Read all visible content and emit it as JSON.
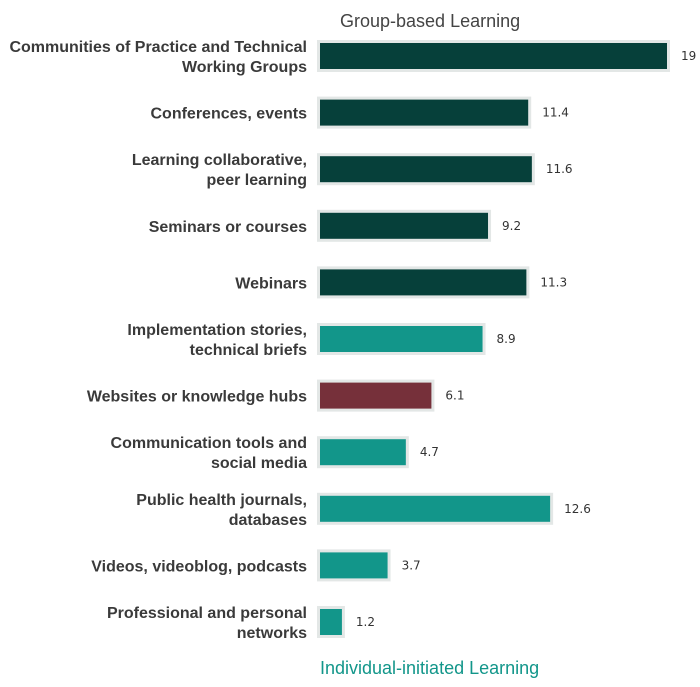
{
  "chart_data": {
    "type": "bar",
    "orientation": "horizontal",
    "categories": [
      [
        "Communities of Practice and Technical",
        "Working Groups"
      ],
      [
        "Conferences, events"
      ],
      [
        "Learning collaborative,",
        "peer learning"
      ],
      [
        "Seminars or courses"
      ],
      [
        "Webinars"
      ],
      [
        "Implementation stories,",
        "technical briefs"
      ],
      [
        "Websites or knowledge hubs"
      ],
      [
        "Communication tools and",
        "social media"
      ],
      [
        "Public health journals,",
        "databases"
      ],
      [
        "Videos, videoblog, podcasts"
      ],
      [
        "Professional and personal",
        "networks"
      ]
    ],
    "values": [
      19,
      11.4,
      11.6,
      9.2,
      11.3,
      8.9,
      6.1,
      4.7,
      12.6,
      3.7,
      1.2
    ],
    "value_labels": [
      "19",
      "11.4",
      "11.6",
      "9.2",
      "11.3",
      "8.9",
      "6.1",
      "4.7",
      "12.6",
      "3.7",
      "1.2"
    ],
    "bar_colors": [
      "#06403a",
      "#06403a",
      "#06403a",
      "#06403a",
      "#06403a",
      "#12968a",
      "#76303a",
      "#12968a",
      "#12968a",
      "#12968a",
      "#12968a"
    ],
    "bar_outline_color": "#e3e7e6",
    "xlim": [
      0,
      19
    ],
    "group_titles": {
      "top": "Group-based Learning",
      "bottom": "Individual-initiated Learning"
    },
    "group_title_colors": {
      "top": "#444444",
      "bottom": "#12968a"
    },
    "grid": false
  }
}
